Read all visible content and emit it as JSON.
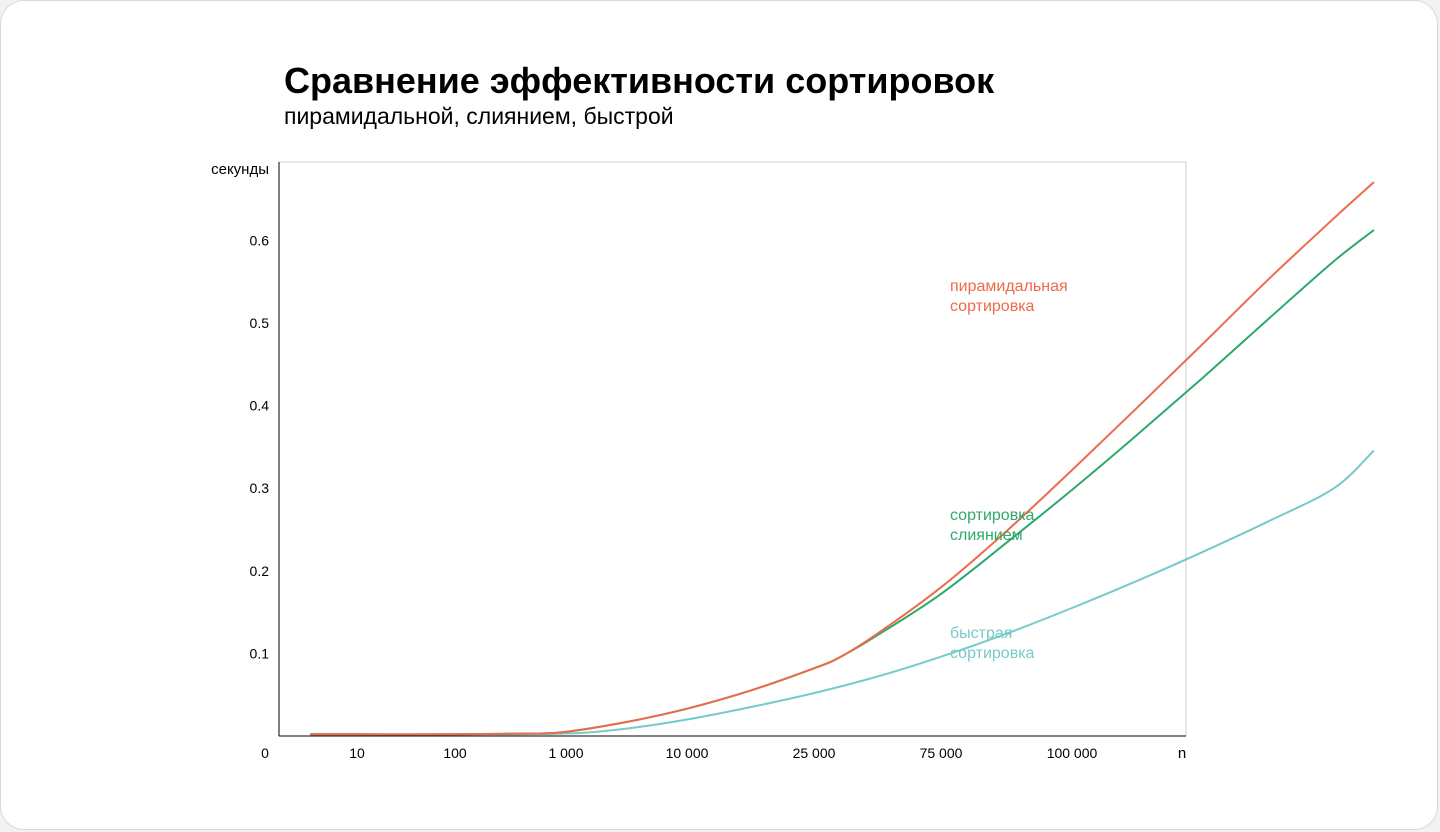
{
  "chart_data": {
    "type": "line",
    "title": "Сравнение эффективности сортировок",
    "subtitle": "пирамидальной, слиянием, быстрой",
    "xlabel": "n",
    "ylabel": "секунды",
    "x_ticks": [
      "0",
      "10",
      "100",
      "1 000",
      "10 000",
      "25 000",
      "75 000",
      "100 000"
    ],
    "y_ticks": [
      "0.1",
      "0.2",
      "0.3",
      "0.4",
      "0.5",
      "0.6"
    ],
    "ylim": [
      0,
      0.695
    ],
    "grid": false,
    "series": [
      {
        "name": "пирамидальная сортировка",
        "label_lines": [
          "пирамидальная",
          "сортировка"
        ],
        "color": "#ee6a4c",
        "values": [
          [
            0.5,
            0.002
          ],
          [
            1,
            0.002
          ],
          [
            2,
            0.002
          ],
          [
            2.7,
            0.003
          ],
          [
            3,
            0.005
          ],
          [
            3.5,
            0.017
          ],
          [
            4,
            0.033
          ],
          [
            4.5,
            0.055
          ],
          [
            5,
            0.082
          ],
          [
            5.2,
            0.095
          ],
          [
            5.5,
            0.124
          ],
          [
            6,
            0.18
          ],
          [
            6.5,
            0.248
          ],
          [
            7,
            0.322
          ],
          [
            7.5,
            0.398
          ],
          [
            8,
            0.475
          ],
          [
            8.5,
            0.553
          ],
          [
            9,
            0.627
          ],
          [
            9.3,
            0.67
          ]
        ]
      },
      {
        "name": "сортировка слиянием",
        "label_lines": [
          "сортировка",
          "слиянием"
        ],
        "color": "#2ea86b",
        "values": [
          [
            0.5,
            0.002
          ],
          [
            1,
            0.002
          ],
          [
            2,
            0.002
          ],
          [
            2.7,
            0.003
          ],
          [
            3,
            0.005
          ],
          [
            3.5,
            0.017
          ],
          [
            4,
            0.033
          ],
          [
            4.5,
            0.055
          ],
          [
            5,
            0.082
          ],
          [
            5.2,
            0.095
          ],
          [
            5.5,
            0.122
          ],
          [
            6,
            0.172
          ],
          [
            6.5,
            0.234
          ],
          [
            7,
            0.298
          ],
          [
            7.5,
            0.365
          ],
          [
            8,
            0.434
          ],
          [
            8.5,
            0.505
          ],
          [
            9,
            0.575
          ],
          [
            9.3,
            0.612
          ]
        ]
      },
      {
        "name": "быстрая сортировка",
        "label_lines": [
          "быстрая",
          "сортировка"
        ],
        "color": "#78c9c9",
        "values": [
          [
            0.5,
            0.002
          ],
          [
            1,
            0.002
          ],
          [
            2,
            0.002
          ],
          [
            3,
            0.003
          ],
          [
            3.5,
            0.009
          ],
          [
            4,
            0.02
          ],
          [
            4.5,
            0.035
          ],
          [
            5,
            0.052
          ],
          [
            5.5,
            0.072
          ],
          [
            6,
            0.096
          ],
          [
            6.5,
            0.124
          ],
          [
            7,
            0.155
          ],
          [
            7.5,
            0.188
          ],
          [
            8,
            0.223
          ],
          [
            8.5,
            0.26
          ],
          [
            9,
            0.3
          ],
          [
            9.3,
            0.345
          ]
        ]
      }
    ]
  }
}
